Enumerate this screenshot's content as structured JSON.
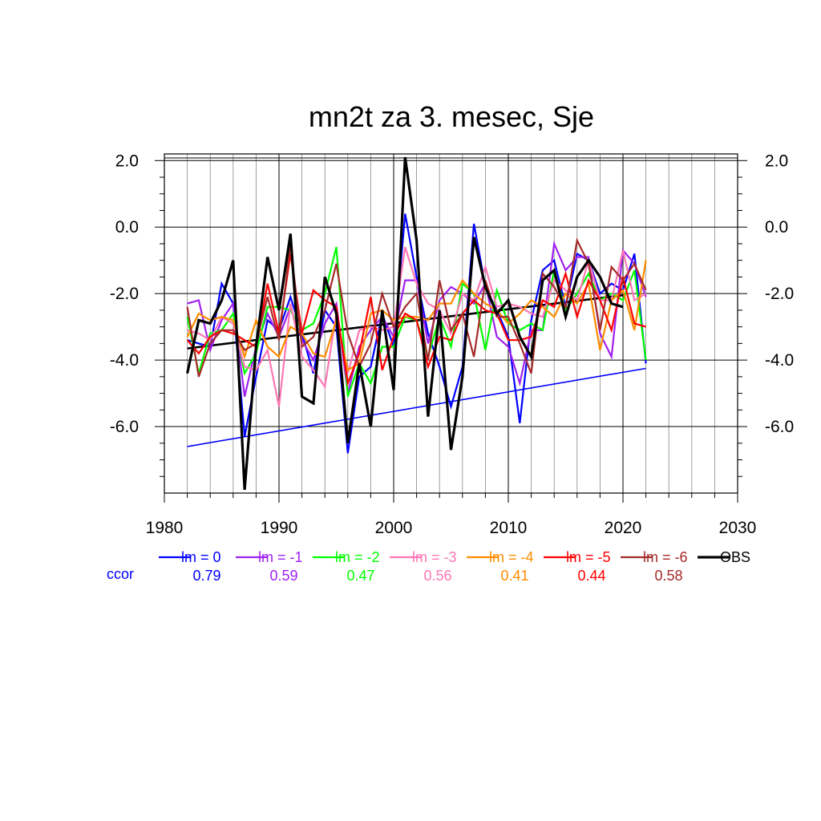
{
  "chart_data": {
    "type": "line",
    "title": "mn2t za 3. mesec, Sje",
    "xlabel": "",
    "ylabel": "",
    "xlim": [
      1980,
      2030
    ],
    "ylim": [
      -8.0,
      2.2
    ],
    "x_ticks": [
      1980,
      1990,
      2000,
      2010,
      2020,
      2030
    ],
    "x_tick_labels": [
      "1980",
      "1990",
      "2000",
      "2010",
      "2020",
      "2030"
    ],
    "y_ticks": [
      2.0,
      0.0,
      -2.0,
      -4.0,
      -6.0
    ],
    "y_tick_labels": [
      "2.0",
      "0.0",
      "-2.0",
      "-4.0",
      "-6.0"
    ],
    "grid": true,
    "legend_position": "bottom",
    "ccor_label": "ccor",
    "ccor_color": "#0000ff",
    "x": [
      1982,
      1983,
      1984,
      1985,
      1986,
      1987,
      1988,
      1989,
      1990,
      1991,
      1992,
      1993,
      1994,
      1995,
      1996,
      1997,
      1998,
      1999,
      2000,
      2001,
      2002,
      2003,
      2004,
      2005,
      2006,
      2007,
      2008,
      2009,
      2010,
      2011,
      2012,
      2013,
      2014,
      2015,
      2016,
      2017,
      2018,
      2019,
      2020,
      2021,
      2022
    ],
    "series": [
      {
        "name": "lm = 0",
        "ccor": "0.79",
        "color": "#0000ff",
        "values": [
          -3.4,
          -3.5,
          -3.6,
          -1.7,
          -2.3,
          -6.3,
          -4.5,
          -2.8,
          -3.1,
          -2.1,
          -3.2,
          -4.4,
          -2.5,
          -3.0,
          -6.8,
          -4.5,
          -4.2,
          -2.6,
          -3.6,
          0.4,
          -1.5,
          -3.2,
          -4.2,
          -5.4,
          -4.2,
          0.1,
          -1.8,
          -2.5,
          -3.3,
          -5.9,
          -2.8,
          -1.3,
          -1.0,
          -2.4,
          -0.8,
          -1.0,
          -2.0,
          -1.7,
          -1.9,
          -0.8,
          -4.1
        ]
      },
      {
        "name": "lm = -1",
        "ccor": "0.59",
        "color": "#a020f0",
        "values": [
          -2.3,
          -2.2,
          -3.7,
          -2.8,
          -2.3,
          -5.1,
          -3.6,
          -2.6,
          -3.3,
          -2.4,
          -3.4,
          -4.0,
          -2.9,
          -2.3,
          -5.0,
          -3.6,
          -3.1,
          -2.7,
          -3.3,
          -1.6,
          -1.6,
          -3.5,
          -2.2,
          -1.8,
          -2.0,
          -2.3,
          -1.7,
          -3.3,
          -3.6,
          -4.7,
          -3.1,
          -3.1,
          -0.5,
          -1.3,
          -0.9,
          -0.9,
          -3.2,
          -3.9,
          -0.7,
          -1.1,
          -2.1
        ]
      },
      {
        "name": "lm = -2",
        "ccor": "0.47",
        "color": "#00ff00",
        "values": [
          -2.7,
          -4.4,
          -3.2,
          -3.1,
          -2.6,
          -4.4,
          -3.8,
          -2.4,
          -2.4,
          -2.5,
          -3.1,
          -2.9,
          -2.0,
          -0.6,
          -5.1,
          -4.1,
          -4.7,
          -3.6,
          -3.6,
          -2.7,
          -2.8,
          -3.9,
          -2.7,
          -3.6,
          -1.7,
          -2.0,
          -3.7,
          -1.9,
          -2.9,
          -3.1,
          -2.9,
          -3.1,
          -1.3,
          -2.5,
          -2.0,
          -1.4,
          -2.2,
          -2.0,
          -2.2,
          -1.3,
          -4.0
        ]
      },
      {
        "name": "lm = -3",
        "ccor": "0.56",
        "color": "#ff77b4",
        "values": [
          -3.1,
          -3.2,
          -3.4,
          -2.7,
          -2.9,
          -4.2,
          -4.3,
          -3.7,
          -5.4,
          -2.3,
          -3.9,
          -4.3,
          -4.8,
          -2.6,
          -4.4,
          -3.1,
          -3.0,
          -3.1,
          -3.0,
          -0.6,
          -1.7,
          -2.3,
          -2.5,
          -3.2,
          -2.0,
          -2.2,
          -1.2,
          -2.4,
          -2.3,
          -2.4,
          -2.6,
          -2.7,
          -1.6,
          -1.9,
          -2.2,
          -1.0,
          -2.2,
          -2.2,
          -0.7,
          -2.2,
          -2.0
        ]
      },
      {
        "name": "lm = -4",
        "ccor": "0.41",
        "color": "#ff8c00",
        "values": [
          -3.3,
          -2.6,
          -2.8,
          -2.7,
          -2.8,
          -3.9,
          -2.8,
          -3.6,
          -3.9,
          -3.0,
          -3.2,
          -3.8,
          -3.9,
          -2.8,
          -4.3,
          -4.1,
          -2.6,
          -2.5,
          -2.8,
          -2.7,
          -2.7,
          -2.8,
          -2.3,
          -2.3,
          -1.6,
          -2.0,
          -2.3,
          -2.5,
          -2.9,
          -2.6,
          -2.2,
          -2.4,
          -2.7,
          -2.0,
          -2.3,
          -1.7,
          -3.7,
          -2.2,
          -1.9,
          -3.1,
          -1.0
        ]
      },
      {
        "name": "lm = -5",
        "ccor": "0.44",
        "color": "#ff0000",
        "values": [
          -3.4,
          -3.8,
          -3.3,
          -3.1,
          -3.2,
          -3.4,
          -3.6,
          -1.7,
          -3.2,
          -0.8,
          -3.2,
          -1.9,
          -2.2,
          -2.4,
          -4.7,
          -3.8,
          -2.1,
          -4.3,
          -3.3,
          -2.6,
          -2.8,
          -4.2,
          -3.3,
          -3.4,
          -2.6,
          -2.2,
          -2.5,
          -2.6,
          -3.4,
          -3.4,
          -3.3,
          -2.2,
          -2.4,
          -1.4,
          -2.7,
          -1.6,
          -2.2,
          -3.1,
          -1.5,
          -2.9,
          -3.0
        ]
      },
      {
        "name": "lm = -6",
        "ccor": "0.58",
        "color": "#a52a2a",
        "values": [
          -2.4,
          -4.5,
          -3.5,
          -3.1,
          -3.1,
          -3.7,
          -3.5,
          -2.1,
          -3.4,
          -0.5,
          -3.6,
          -3.3,
          -2.5,
          -1.1,
          -3.2,
          -4.2,
          -3.5,
          -2.0,
          -3.0,
          -2.4,
          -2.0,
          -4.0,
          -1.6,
          -3.1,
          -2.6,
          -3.9,
          -1.6,
          -2.7,
          -2.7,
          -3.5,
          -4.4,
          -1.4,
          -1.8,
          -2.4,
          -0.4,
          -1.1,
          -3.1,
          -1.2,
          -1.6,
          -1.1,
          -1.9
        ]
      },
      {
        "name": "OBS",
        "ccor": "",
        "color": "#000000",
        "values": [
          -4.4,
          -2.8,
          -2.9,
          -2.2,
          -1.0,
          -7.9,
          -3.6,
          -0.9,
          -2.5,
          -0.2,
          -5.1,
          -5.3,
          -1.5,
          -2.6,
          -6.5,
          -4.1,
          -6.0,
          -2.5,
          -4.9,
          2.1,
          -0.4,
          -5.7,
          -2.5,
          -6.7,
          -4.5,
          -0.3,
          -1.8,
          -2.6,
          -2.2,
          -3.3,
          -3.9,
          -1.6,
          -1.3,
          -2.7,
          -1.5,
          -1.0,
          -1.5,
          -2.3,
          -2.4,
          null,
          null
        ]
      }
    ],
    "trend_lines": [
      {
        "label": "OBS trend",
        "color": "#000000",
        "x": [
          1982,
          2020
        ],
        "y": [
          -3.65,
          -2.05
        ]
      },
      {
        "label": "lm = 0 trend",
        "color": "#0000ff",
        "x": [
          1982,
          2022
        ],
        "y": [
          -6.6,
          -4.25
        ]
      }
    ]
  }
}
